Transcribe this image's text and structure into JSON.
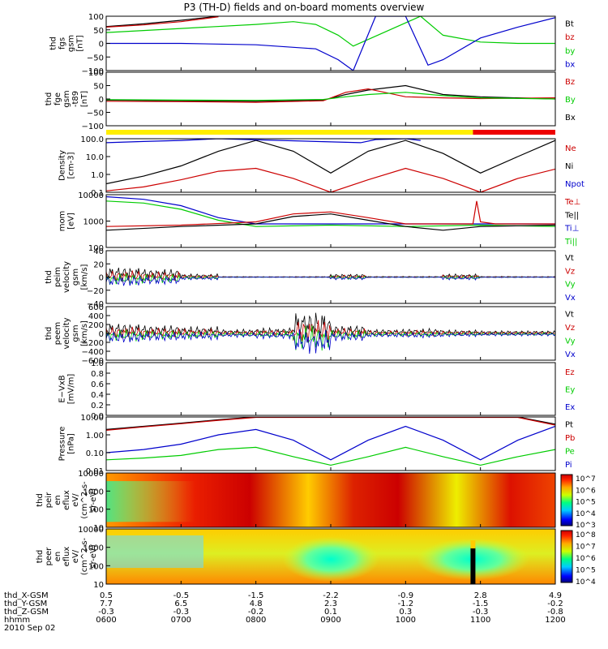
{
  "title": "P3 (TH-D) fields and on-board moments overview",
  "date_label": "2010 Sep 02",
  "bottom_axis": {
    "row_labels": [
      "thd_X-GSM",
      "thd_Y-GSM",
      "thd_Z-GSM",
      "hhmm"
    ],
    "ticks": [
      {
        "x": "0.5",
        "y": "7.7",
        "z": "-0.3",
        "t": "0600"
      },
      {
        "x": "-0.5",
        "y": "6.5",
        "z": "-0.3",
        "t": "0700"
      },
      {
        "x": "-1.5",
        "y": "4.8",
        "z": "-0.2",
        "t": "0800"
      },
      {
        "x": "-2.2",
        "y": "2.3",
        "z": "0.1",
        "t": "0900"
      },
      {
        "x": "-0.9",
        "y": "-1.2",
        "z": "0.3",
        "t": "1000"
      },
      {
        "x": "2.8",
        "y": "-1.5",
        "z": "-0.3",
        "t": "1100"
      },
      {
        "x": "4.9",
        "y": "-0.2",
        "z": "-0.8",
        "t": "1200"
      }
    ]
  },
  "chart_data": [
    {
      "type": "line",
      "ylabel": [
        "thd",
        "fgs",
        "gsm",
        "[nT]"
      ],
      "ylim": [
        -100,
        100
      ],
      "yticks": [
        "100",
        "50",
        "0",
        "−50",
        "−100"
      ],
      "legend": [
        {
          "name": "Bt",
          "color": "#000000"
        },
        {
          "name": "bz",
          "color": "#cc0000"
        },
        {
          "name": "by",
          "color": "#00cc00"
        },
        {
          "name": "bx",
          "color": "#0000cc"
        }
      ],
      "series": [
        {
          "name": "Bt",
          "color": "#000000",
          "x": [
            6.0,
            6.5,
            7.0,
            7.5
          ],
          "y": [
            62,
            72,
            85,
            100
          ]
        },
        {
          "name": "bz",
          "color": "#cc0000",
          "x": [
            6.0,
            6.5,
            7.0,
            7.5
          ],
          "y": [
            60,
            68,
            80,
            98
          ]
        },
        {
          "name": "by",
          "color": "#00cc00",
          "x": [
            6.0,
            7.0,
            8.0,
            8.5,
            8.8,
            9.1,
            9.3,
            10.2,
            10.5,
            11.0,
            11.5,
            12.0
          ],
          "y": [
            40,
            55,
            70,
            80,
            70,
            30,
            -10,
            100,
            30,
            5,
            0,
            0
          ]
        },
        {
          "name": "bx",
          "color": "#0000cc",
          "x": [
            6.0,
            7.0,
            8.0,
            8.8,
            9.1,
            9.3,
            9.6,
            10.0,
            10.3,
            10.5,
            11.0,
            11.5,
            12.0
          ],
          "y": [
            0,
            0,
            -5,
            -20,
            -60,
            -100,
            100,
            100,
            -80,
            -60,
            20,
            60,
            95
          ]
        }
      ]
    },
    {
      "type": "line",
      "ylabel": [
        "thd",
        "fge",
        "gsm",
        "-t89",
        "[nT]"
      ],
      "ylim": [
        -120,
        120
      ],
      "yticks": [
        "100",
        "50",
        "0",
        "−50",
        "−100"
      ],
      "legend": [
        {
          "name": "Bz",
          "color": "#cc0000"
        },
        {
          "name": "By",
          "color": "#00cc00"
        },
        {
          "name": "Bx",
          "color": "#000000"
        }
      ],
      "series": [
        {
          "name": "Bx",
          "color": "#000000",
          "x": [
            6.0,
            7.0,
            8.0,
            8.9,
            9.2,
            9.5,
            10.0,
            10.5,
            11.0,
            12.0
          ],
          "y": [
            -5,
            -8,
            -10,
            -5,
            20,
            40,
            60,
            20,
            10,
            0
          ]
        },
        {
          "name": "Bz",
          "color": "#cc0000",
          "x": [
            6.0,
            7.0,
            8.0,
            8.9,
            9.2,
            9.5,
            10.0,
            10.5,
            11.0,
            12.0
          ],
          "y": [
            -10,
            -12,
            -15,
            -8,
            30,
            45,
            10,
            5,
            2,
            5
          ]
        },
        {
          "name": "By",
          "color": "#00cc00",
          "x": [
            6.0,
            7.0,
            8.0,
            8.9,
            9.2,
            9.5,
            10.0,
            10.5,
            11.0,
            12.0
          ],
          "y": [
            -3,
            -5,
            -6,
            -2,
            10,
            20,
            30,
            15,
            5,
            0
          ]
        }
      ],
      "mode_bar": [
        {
          "from": 6.0,
          "to": 10.9,
          "color": "#ffee00"
        },
        {
          "from": 10.9,
          "to": 12.0,
          "color": "#ee0000"
        }
      ]
    },
    {
      "type": "line",
      "scale": "log",
      "ylabel": [
        "Density",
        "[cm-3]"
      ],
      "ylim": [
        0.1,
        100
      ],
      "yticks": [
        "100.0",
        "10.0",
        "1.0",
        "0.1"
      ],
      "legend": [
        {
          "name": "Ne",
          "color": "#cc0000"
        },
        {
          "name": "Ni",
          "color": "#000000"
        },
        {
          "name": "Npot",
          "color": "#0000cc"
        }
      ],
      "series": [
        {
          "name": "Ni",
          "color": "#000000",
          "x": [
            6.0,
            6.5,
            7.0,
            7.5,
            8.0,
            8.5,
            9.0,
            9.5,
            10.0,
            10.5,
            11.0,
            11.5,
            12.0
          ],
          "y": [
            0.3,
            0.8,
            3,
            20,
            80,
            20,
            1.2,
            20,
            80,
            15,
            1.2,
            10,
            80
          ]
        },
        {
          "name": "Ne",
          "color": "#cc0000",
          "x": [
            6.0,
            6.5,
            7.0,
            7.5,
            8.0,
            8.5,
            9.0,
            9.5,
            10.0,
            10.5,
            11.0,
            11.5,
            12.0
          ],
          "y": [
            0.12,
            0.2,
            0.5,
            1.5,
            2.2,
            0.6,
            0.1,
            0.5,
            2.2,
            0.6,
            0.1,
            0.6,
            2.0
          ]
        },
        {
          "name": "Npot",
          "color": "#0000cc",
          "x": [
            6.0,
            6.5,
            7.0,
            7.5,
            9.4,
            9.6,
            10.0,
            10.2
          ],
          "y": [
            60,
            70,
            80,
            100,
            60,
            90,
            100,
            80
          ]
        }
      ]
    },
    {
      "type": "line",
      "scale": "log",
      "ylabel": [
        "mom",
        "[eV]"
      ],
      "ylim": [
        30,
        10000
      ],
      "yticks": [
        "10000",
        "1000",
        "100"
      ],
      "legend": [
        {
          "name": "Te⊥",
          "color": "#cc0000"
        },
        {
          "name": "Te||",
          "color": "#000000"
        },
        {
          "name": "Ti⊥",
          "color": "#0000cc"
        },
        {
          "name": "Ti||",
          "color": "#00cc00"
        }
      ],
      "series": [
        {
          "name": "Ti⊥",
          "color": "#0000cc",
          "x": [
            6.0,
            6.5,
            7.0,
            7.5,
            8.0,
            9.0,
            10.0,
            11.0,
            12.0
          ],
          "y": [
            8000,
            6000,
            3000,
            800,
            400,
            400,
            400,
            400,
            400
          ]
        },
        {
          "name": "Ti||",
          "color": "#00cc00",
          "x": [
            6.0,
            6.5,
            7.0,
            7.5,
            8.0,
            9.0,
            10.0,
            11.0,
            12.0
          ],
          "y": [
            5000,
            4000,
            2000,
            600,
            300,
            350,
            300,
            350,
            300
          ]
        },
        {
          "name": "Te⊥",
          "color": "#cc0000",
          "x": [
            6.0,
            7.0,
            8.0,
            8.5,
            9.0,
            9.5,
            10.0,
            10.9,
            10.95,
            11.0,
            11.2,
            12.0
          ],
          "y": [
            300,
            350,
            500,
            1200,
            1500,
            800,
            400,
            400,
            5000,
            500,
            400,
            400
          ]
        },
        {
          "name": "Te||",
          "color": "#000000",
          "x": [
            6.0,
            7.0,
            8.0,
            8.5,
            9.0,
            9.5,
            10.0,
            10.5,
            11.0,
            12.0
          ],
          "y": [
            200,
            300,
            400,
            900,
            1200,
            600,
            300,
            200,
            300,
            350
          ]
        }
      ]
    },
    {
      "type": "line",
      "ylabel": [
        "thd",
        "peim",
        "velocity",
        "gsm",
        "[km/s]"
      ],
      "ylim": [
        -40,
        40
      ],
      "yticks": [
        "40",
        "20",
        "0",
        "−20",
        "−40"
      ],
      "legend": [
        {
          "name": "Vt",
          "color": "#000000"
        },
        {
          "name": "Vz",
          "color": "#cc0000"
        },
        {
          "name": "Vy",
          "color": "#00cc00"
        },
        {
          "name": "Vx",
          "color": "#0000cc"
        }
      ]
    },
    {
      "type": "line",
      "ylabel": [
        "thd",
        "peem",
        "velocity",
        "gsm",
        "[km/s]"
      ],
      "ylim": [
        -600,
        600
      ],
      "yticks": [
        "600",
        "400",
        "200",
        "0",
        "−200",
        "−400",
        "−600"
      ],
      "legend": [
        {
          "name": "Vt",
          "color": "#000000"
        },
        {
          "name": "Vz",
          "color": "#cc0000"
        },
        {
          "name": "Vy",
          "color": "#00cc00"
        },
        {
          "name": "Vx",
          "color": "#0000cc"
        }
      ]
    },
    {
      "type": "line",
      "ylabel": [
        "E−VxB",
        "[mV/m]"
      ],
      "ylim": [
        0,
        1
      ],
      "yticks": [
        "1.0",
        "0.8",
        "0.6",
        "0.4",
        "0.2",
        "0.0"
      ],
      "legend": [
        {
          "name": "Ez",
          "color": "#cc0000"
        },
        {
          "name": "Ey",
          "color": "#00cc00"
        },
        {
          "name": "Ex",
          "color": "#0000cc"
        }
      ]
    },
    {
      "type": "line",
      "scale": "log",
      "ylabel": [
        "Pressure",
        "[nPa]"
      ],
      "ylim": [
        0.01,
        10
      ],
      "yticks": [
        "10.00",
        "1.00",
        "0.10",
        "0.01"
      ],
      "legend": [
        {
          "name": "Pt",
          "color": "#000000"
        },
        {
          "name": "Pb",
          "color": "#cc0000"
        },
        {
          "name": "Pe",
          "color": "#00cc00"
        },
        {
          "name": "Pi",
          "color": "#0000cc"
        }
      ],
      "series": [
        {
          "name": "Pt",
          "color": "#000000",
          "x": [
            6.0,
            6.5,
            7.0,
            7.5,
            8.0,
            11.5,
            12.0
          ],
          "y": [
            2,
            3,
            4.5,
            7,
            10,
            10,
            4
          ]
        },
        {
          "name": "Pb",
          "color": "#cc0000",
          "x": [
            6.0,
            6.5,
            7.0,
            7.5,
            8.0,
            11.5,
            12.0
          ],
          "y": [
            1.8,
            2.8,
            4.2,
            6.5,
            9.5,
            9.5,
            3.5
          ]
        },
        {
          "name": "Pi",
          "color": "#0000cc",
          "x": [
            6.0,
            6.5,
            7.0,
            7.5,
            8.0,
            8.5,
            9.0,
            9.5,
            10.0,
            10.5,
            11.0,
            11.5,
            12.0
          ],
          "y": [
            0.1,
            0.15,
            0.3,
            1.0,
            2.0,
            0.5,
            0.04,
            0.5,
            3.0,
            0.5,
            0.04,
            0.5,
            3.0
          ]
        },
        {
          "name": "Pe",
          "color": "#00cc00",
          "x": [
            6.0,
            6.5,
            7.0,
            7.5,
            8.0,
            8.5,
            9.0,
            9.5,
            10.0,
            10.5,
            11.0,
            11.5,
            12.0
          ],
          "y": [
            0.04,
            0.05,
            0.07,
            0.15,
            0.2,
            0.06,
            0.02,
            0.06,
            0.2,
            0.06,
            0.02,
            0.06,
            0.15
          ]
        }
      ]
    },
    {
      "type": "heatmap",
      "ylabel": [
        "thd",
        "peir",
        "en",
        "eflux",
        "eV/",
        "(cm^2-s-",
        "sr-eV)"
      ],
      "yticks": [
        "10000",
        "1000",
        "100",
        "10"
      ],
      "colorbar_ticks": [
        "10^7",
        "10^6",
        "10^5",
        "10^4",
        "10^3"
      ]
    },
    {
      "type": "heatmap",
      "ylabel": [
        "thd",
        "peer",
        "en",
        "eflux",
        "eV/",
        "(cm^2-s-",
        "sr-eV)"
      ],
      "yticks": [
        "10000",
        "1000",
        "100",
        "10"
      ],
      "colorbar_ticks": [
        "10^8",
        "10^7",
        "10^6",
        "10^5",
        "10^4"
      ]
    }
  ]
}
